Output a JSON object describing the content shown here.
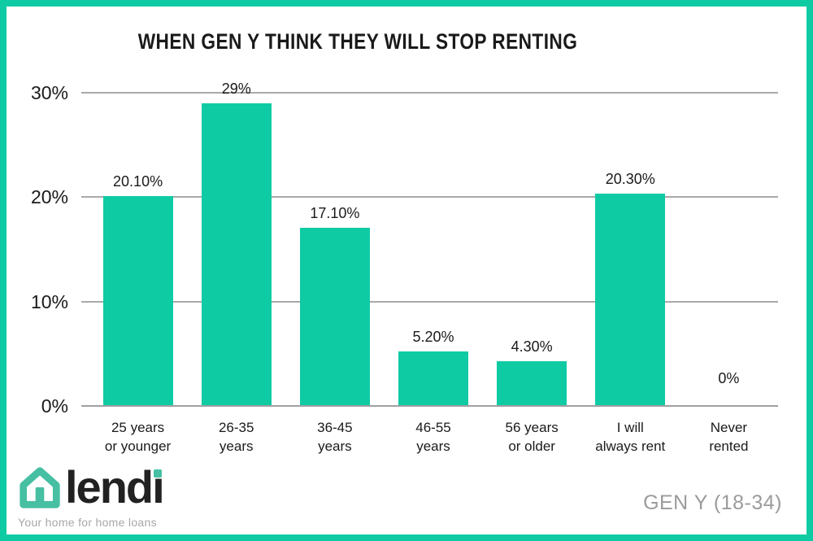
{
  "colors": {
    "accent_teal": "#0fcba4",
    "logo_teal": "#46bfa2",
    "gridline_gray": "#a9a9a9",
    "text_dark": "#1a1a1a",
    "muted_gray": "#9b9b9b",
    "tagline_gray": "#a7a7a7"
  },
  "chart_data": {
    "type": "bar",
    "title": "WHEN GEN Y THINK THEY WILL STOP RENTING",
    "categories": [
      [
        "25 years",
        "or younger"
      ],
      [
        "26-35",
        "years"
      ],
      [
        "36-45",
        "years"
      ],
      [
        "46-55",
        "years"
      ],
      [
        "56 years",
        "or older"
      ],
      [
        "I will",
        "always rent"
      ],
      [
        "Never",
        "rented"
      ]
    ],
    "values": [
      20.1,
      29,
      17.1,
      5.2,
      4.3,
      20.3,
      0
    ],
    "value_labels": [
      "20.10%",
      "29%",
      "17.10%",
      "5.20%",
      "4.30%",
      "20.30%",
      "0%"
    ],
    "y_ticks": [
      {
        "label": "0%",
        "value": 0
      },
      {
        "label": "10%",
        "value": 10
      },
      {
        "label": "20%",
        "value": 20
      },
      {
        "label": "30%",
        "value": 30
      }
    ],
    "ylim": [
      0,
      30
    ],
    "xlabel": "",
    "ylabel": "",
    "grid": true,
    "legend_position": "none",
    "bar_color": "#0fcba4",
    "gridline_color": "#a9a9a9"
  },
  "footer": {
    "brand": {
      "name": "lendi",
      "icon": "house-icon",
      "tagline": "Your home for home loans",
      "color": "#46bfa2"
    },
    "cohort_label": "GEN Y (18-34)"
  }
}
